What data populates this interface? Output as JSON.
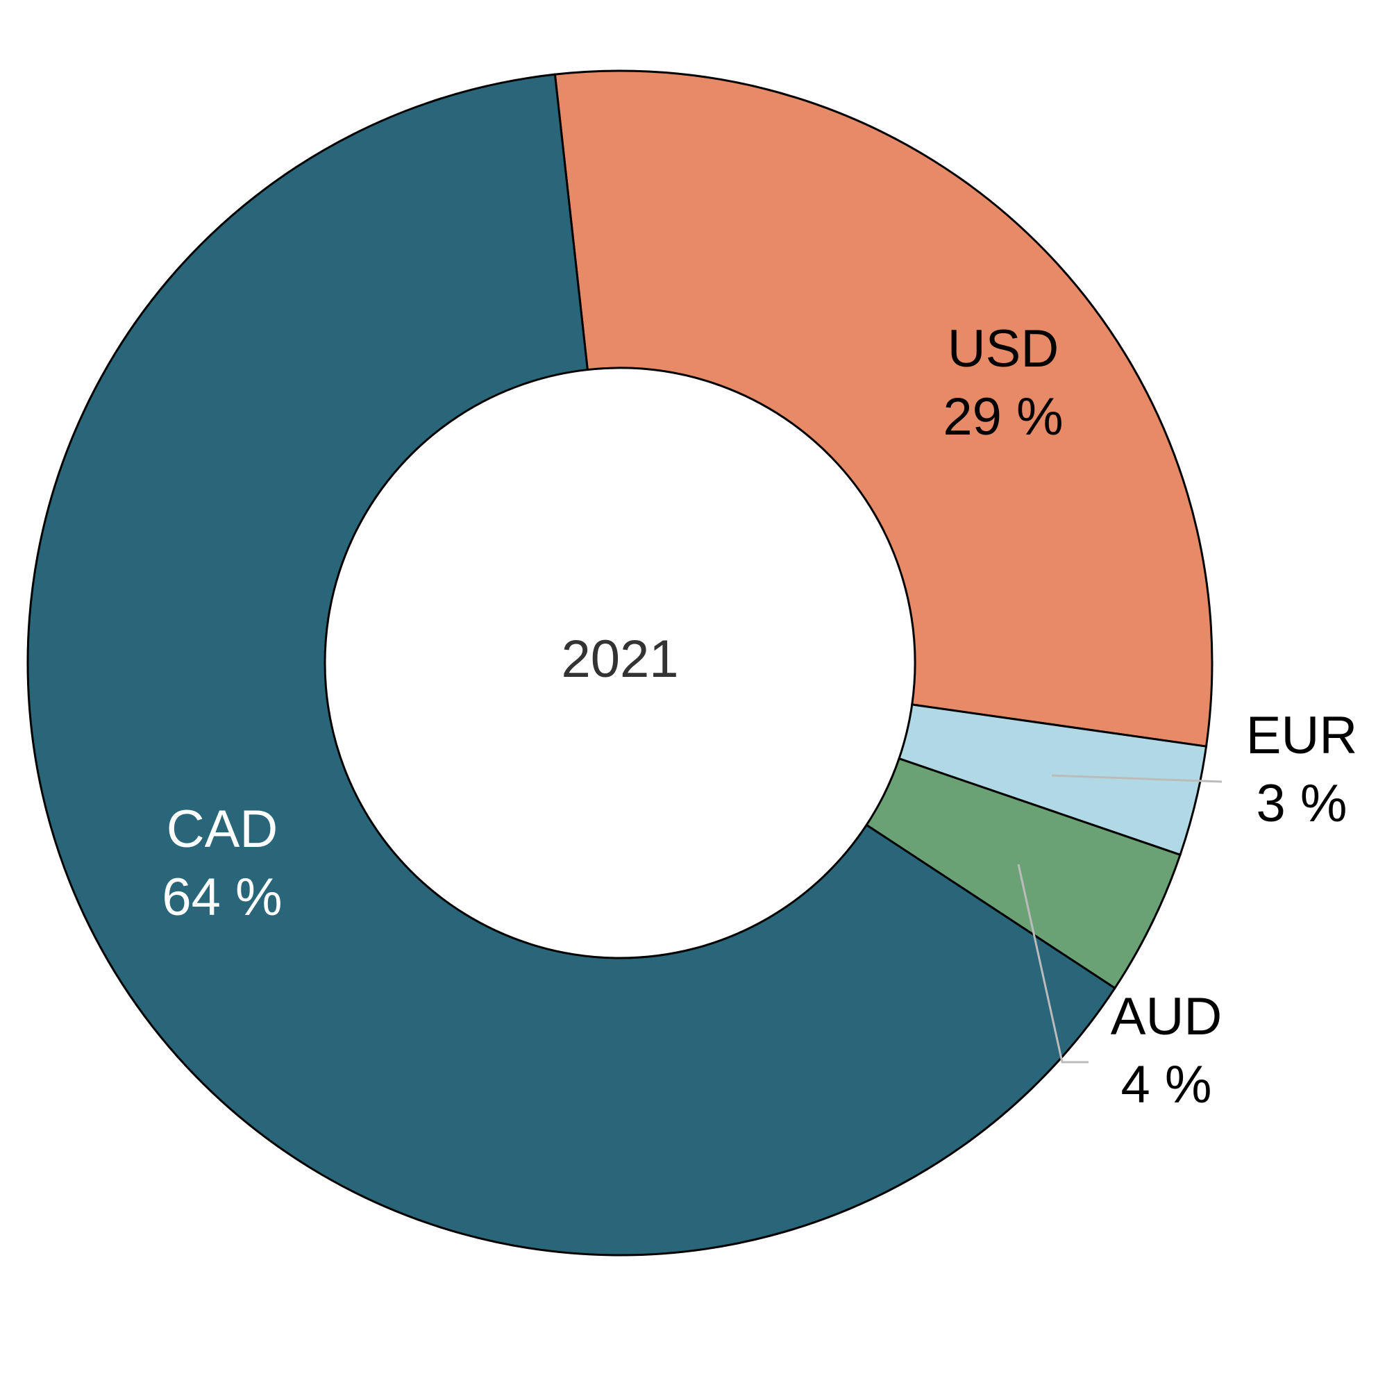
{
  "chart_data": {
    "type": "pie",
    "variant": "donut",
    "center_label": "2021",
    "slices": [
      {
        "name": "USD",
        "value": 29,
        "label": "29 %",
        "color": "#E68A67",
        "label_color": "#000000"
      },
      {
        "name": "EUR",
        "value": 3,
        "label": "3 %",
        "color": "#B0D9E5",
        "label_color": "#000000"
      },
      {
        "name": "AUD",
        "value": 4,
        "label": "4 %",
        "color": "#6BA275",
        "label_color": "#000000"
      },
      {
        "name": "CAD",
        "value": 64,
        "label": "64 %",
        "color": "#2A6679",
        "label_color": "#FFFFFF"
      }
    ]
  }
}
